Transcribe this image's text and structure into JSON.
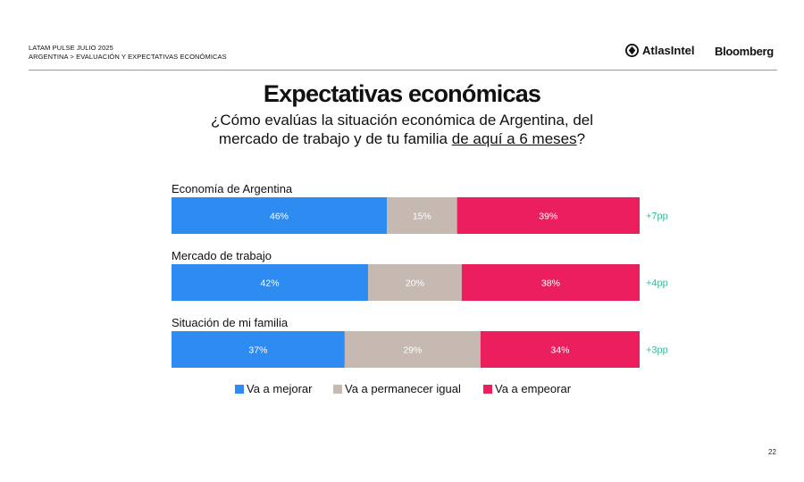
{
  "header": {
    "line1": "LATAM PULSE JULIO 2025",
    "line2": "ARGENTINA > EVALUACIÓN Y EXPECTATIVAS ECONÓMICAS",
    "brand_atlas": "AtlasIntel",
    "brand_bloomberg": "Bloomberg"
  },
  "title": "Expectativas económicas",
  "subtitle": {
    "line1": "¿Cómo evalúas la situación económica de Argentina, del",
    "line2_pre": "mercado de trabajo y de tu familia ",
    "line2_underlined": "de aquí a 6 meses",
    "line2_post": "?"
  },
  "page_number": "22",
  "colors": {
    "mejorar": "#2e8bf2",
    "igual": "#c5b9b1",
    "empeorar": "#eb1f5e",
    "diff": "#3bb89b"
  },
  "chart_data": {
    "type": "bar",
    "orientation": "horizontal-stacked-100",
    "categories": [
      "Economía de Argentina",
      "Mercado de trabajo",
      "Situación de mi familia"
    ],
    "series": [
      {
        "name": "Va a mejorar",
        "values": [
          46,
          42,
          37
        ]
      },
      {
        "name": "Va a permanecer igual",
        "values": [
          15,
          20,
          29
        ]
      },
      {
        "name": "Va a empeorar",
        "values": [
          39,
          38,
          34
        ]
      }
    ],
    "value_labels": [
      [
        "46%",
        "15%",
        "39%"
      ],
      [
        "42%",
        "20%",
        "38%"
      ],
      [
        "37%",
        "29%",
        "34%"
      ]
    ],
    "net_labels": [
      "+7pp",
      "+4pp",
      "+3pp"
    ],
    "xlim": [
      0,
      100
    ],
    "legend_position": "bottom"
  }
}
